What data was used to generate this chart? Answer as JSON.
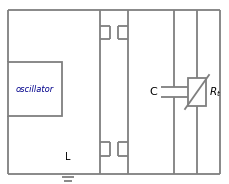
{
  "bg_color": "#ffffff",
  "line_color": "#7f7f7f",
  "text_color": "#000000",
  "label_color_osc": "#00008b",
  "fig_width": 2.3,
  "fig_height": 1.84,
  "dpi": 100,
  "osc_label": "oscillator",
  "L_label": "L",
  "C_label": "C",
  "Rt_label": "R_t",
  "lw": 1.3
}
